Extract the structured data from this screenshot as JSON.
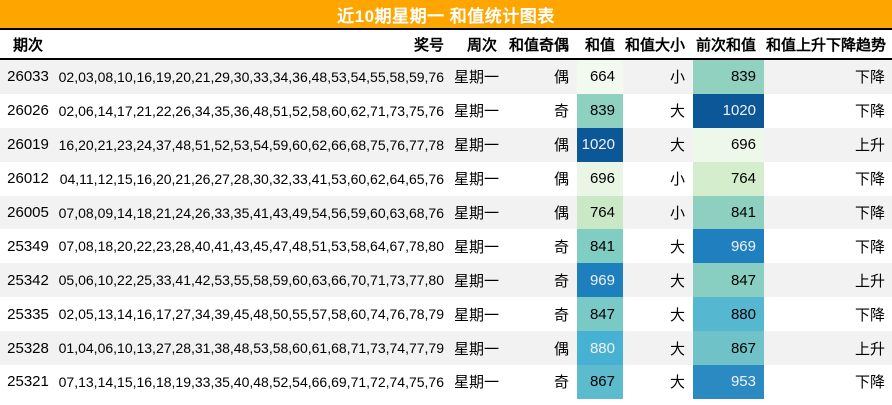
{
  "title": "近10期星期一 和值统计图表",
  "theme": {
    "title_bg": "#FFA500",
    "title_color": "#FFFFFF",
    "stripe_color": "#F2F2F2",
    "border_color": "#000000",
    "heatmap_light": "#F7FCF0",
    "heatmap_dark": "#0B5797"
  },
  "table": {
    "columns": [
      "期次",
      "奖号",
      "周次",
      "和值奇偶",
      "和值",
      "和值大小",
      "前次和值",
      "和值上升下降趋势"
    ],
    "rows": [
      {
        "period": "26033",
        "numbers": "02,03,08,10,16,19,20,21,29,30,33,34,36,48,53,54,55,58,59,76",
        "week": "星期一",
        "parity": "偶",
        "sum": "664",
        "sum_bg": "#f2f9ee",
        "sum_fg": "#000000",
        "size": "小",
        "prev": "839",
        "prev_bg": "#90d1bf",
        "prev_fg": "#000000",
        "trend": "下降"
      },
      {
        "period": "26026",
        "numbers": "02,06,14,17,21,22,26,34,35,36,48,51,52,58,60,62,71,73,75,76",
        "week": "星期一",
        "parity": "奇",
        "sum": "839",
        "sum_bg": "#8ed1c0",
        "sum_fg": "#000000",
        "size": "大",
        "prev": "1020",
        "prev_bg": "#0b5797",
        "prev_fg": "#f1f1f1",
        "trend": "下降"
      },
      {
        "period": "26019",
        "numbers": "16,20,21,23,24,37,48,51,52,53,54,59,60,62,66,68,75,76,77,78",
        "week": "星期一",
        "parity": "偶",
        "sum": "1020",
        "sum_bg": "#0b5797",
        "sum_fg": "#f1f1f1",
        "size": "大",
        "prev": "696",
        "prev_bg": "#eef8ea",
        "prev_fg": "#000000",
        "trend": "上升"
      },
      {
        "period": "26012",
        "numbers": "04,11,12,15,16,20,21,26,27,28,30,32,33,41,53,60,62,64,65,76",
        "week": "星期一",
        "parity": "偶",
        "sum": "696",
        "sum_bg": "#eaf6e5",
        "sum_fg": "#000000",
        "size": "小",
        "prev": "764",
        "prev_bg": "#d4edcc",
        "prev_fg": "#000000",
        "trend": "下降"
      },
      {
        "period": "26005",
        "numbers": "07,08,09,14,18,21,24,26,33,35,41,43,49,54,56,59,60,63,68,76",
        "week": "星期一",
        "parity": "偶",
        "sum": "764",
        "sum_bg": "#cbe8c6",
        "sum_fg": "#000000",
        "size": "小",
        "prev": "841",
        "prev_bg": "#8ed0c0",
        "prev_fg": "#000000",
        "trend": "下降"
      },
      {
        "period": "25349",
        "numbers": "07,08,18,20,22,23,28,40,41,43,45,47,48,51,53,58,64,67,78,80",
        "week": "星期一",
        "parity": "奇",
        "sum": "841",
        "sum_bg": "#7fcdc3",
        "sum_fg": "#000000",
        "size": "大",
        "prev": "969",
        "prev_bg": "#2080bf",
        "prev_fg": "#f1f1f1",
        "trend": "下降"
      },
      {
        "period": "25342",
        "numbers": "05,06,10,22,25,33,41,42,53,55,58,59,60,63,66,70,71,73,77,80",
        "week": "星期一",
        "parity": "奇",
        "sum": "969",
        "sum_bg": "#1d7fbe",
        "sum_fg": "#f1f1f1",
        "size": "大",
        "prev": "847",
        "prev_bg": "#89cfc1",
        "prev_fg": "#000000",
        "trend": "上升"
      },
      {
        "period": "25335",
        "numbers": "02,05,13,14,16,17,27,34,39,45,48,50,55,57,58,60,74,76,78,79",
        "week": "星期一",
        "parity": "奇",
        "sum": "847",
        "sum_bg": "#79cac6",
        "sum_fg": "#000000",
        "size": "大",
        "prev": "880",
        "prev_bg": "#55b7d0",
        "prev_fg": "#000000",
        "trend": "下降"
      },
      {
        "period": "25328",
        "numbers": "01,04,06,10,13,27,28,31,38,48,53,58,60,61,68,71,73,74,77,79",
        "week": "星期一",
        "parity": "偶",
        "sum": "880",
        "sum_bg": "#47b1d3",
        "sum_fg": "#f1f1f1",
        "size": "大",
        "prev": "867",
        "prev_bg": "#6fc3c8",
        "prev_fg": "#000000",
        "trend": "上升"
      },
      {
        "period": "25321",
        "numbers": "07,13,14,15,16,18,19,33,35,40,48,52,54,66,69,71,72,74,75,76",
        "week": "星期一",
        "parity": "奇",
        "sum": "867",
        "sum_bg": "#5cbbcc",
        "sum_fg": "#000000",
        "size": "大",
        "prev": "953",
        "prev_bg": "#2a8ac1",
        "prev_fg": "#f1f1f1",
        "trend": "下降"
      }
    ]
  },
  "chart_data": {
    "type": "table",
    "title": "近10期星期一 和值统计图表",
    "columns": [
      "期次",
      "奖号",
      "周次",
      "和值奇偶",
      "和值",
      "和值大小",
      "前次和值",
      "和值上升下降趋势"
    ],
    "rows": [
      [
        "26033",
        "02,03,08,10,16,19,20,21,29,30,33,34,36,48,53,54,55,58,59,76",
        "星期一",
        "偶",
        664,
        "小",
        839,
        "下降"
      ],
      [
        "26026",
        "02,06,14,17,21,22,26,34,35,36,48,51,52,58,60,62,71,73,75,76",
        "星期一",
        "奇",
        839,
        "大",
        1020,
        "下降"
      ],
      [
        "26019",
        "16,20,21,23,24,37,48,51,52,53,54,59,60,62,66,68,75,76,77,78",
        "星期一",
        "偶",
        1020,
        "大",
        696,
        "上升"
      ],
      [
        "26012",
        "04,11,12,15,16,20,21,26,27,28,30,32,33,41,53,60,62,64,65,76",
        "星期一",
        "偶",
        696,
        "小",
        764,
        "下降"
      ],
      [
        "26005",
        "07,08,09,14,18,21,24,26,33,35,41,43,49,54,56,59,60,63,68,76",
        "星期一",
        "偶",
        764,
        "小",
        841,
        "下降"
      ],
      [
        "25349",
        "07,08,18,20,22,23,28,40,41,43,45,47,48,51,53,58,64,67,78,80",
        "星期一",
        "奇",
        841,
        "大",
        969,
        "下降"
      ],
      [
        "25342",
        "05,06,10,22,25,33,41,42,53,55,58,59,60,63,66,70,71,73,77,80",
        "星期一",
        "奇",
        969,
        "大",
        847,
        "上升"
      ],
      [
        "25335",
        "02,05,13,14,16,17,27,34,39,45,48,50,55,57,58,60,74,76,78,79",
        "星期一",
        "奇",
        847,
        "大",
        880,
        "下降"
      ],
      [
        "25328",
        "01,04,06,10,13,27,28,31,38,48,53,58,60,61,68,71,73,74,77,79",
        "星期一",
        "偶",
        880,
        "大",
        867,
        "上升"
      ],
      [
        "25321",
        "07,13,14,15,16,18,19,33,35,40,48,52,54,66,69,71,72,74,75,76",
        "星期一",
        "奇",
        867,
        "大",
        953,
        "下降"
      ]
    ],
    "heatmap_columns": [
      "和值",
      "前次和值"
    ],
    "heatmap_ranges": {
      "和值": [
        664,
        1020
      ],
      "前次和值": [
        696,
        1020
      ]
    },
    "colormap": "GnBu light-green (low) to dark-blue (high), per-column normalization",
    "layout": "banded rows (odd rows light gray), header bold with black top/bottom rules, orange title band"
  }
}
